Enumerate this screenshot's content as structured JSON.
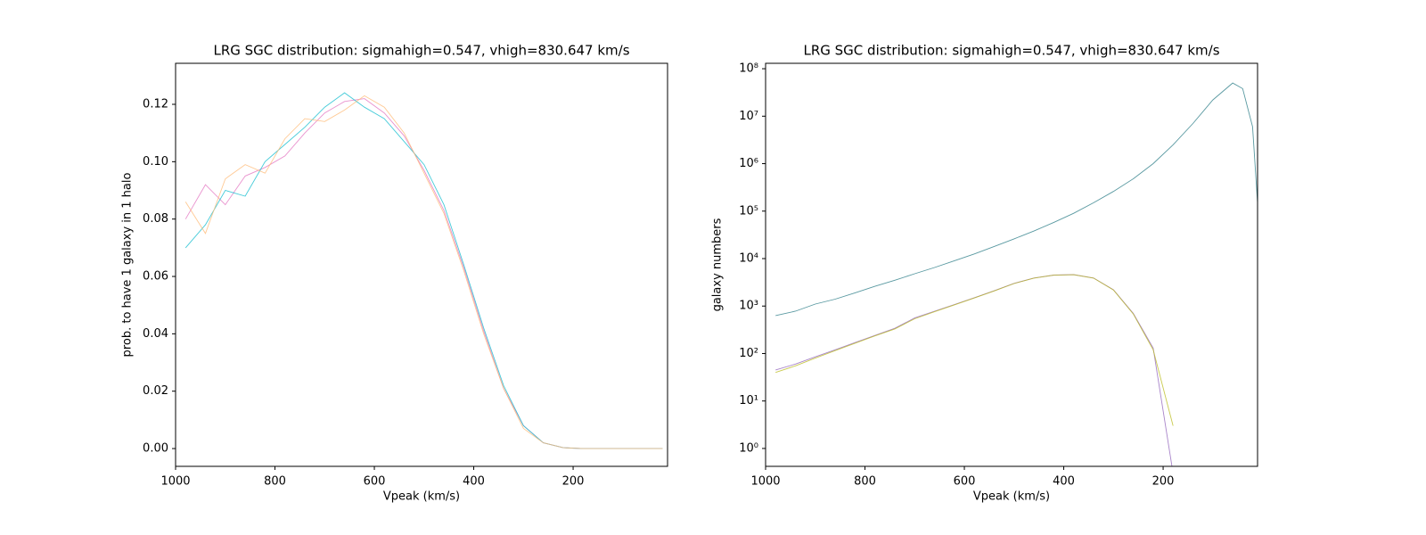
{
  "chart_data": [
    {
      "type": "line",
      "title": "LRG SGC distribution: sigmahigh=0.547, vhigh=830.647 km/s",
      "xlabel": "Vpeak (km/s)",
      "ylabel": "prob. to have 1 galaxy in 1 halo",
      "x": [
        980,
        940,
        900,
        860,
        820,
        780,
        740,
        700,
        660,
        620,
        580,
        540,
        500,
        460,
        420,
        380,
        340,
        300,
        260,
        220,
        180,
        140,
        100,
        60,
        20
      ],
      "series": [
        {
          "color": "#e377c2",
          "values": [
            0.08,
            0.092,
            0.085,
            0.095,
            0.098,
            0.102,
            0.11,
            0.117,
            0.121,
            0.122,
            0.117,
            0.109,
            0.097,
            0.083,
            0.063,
            0.041,
            0.021,
            0.008,
            0.002,
            0.0003,
            0,
            0,
            0,
            0,
            0
          ]
        },
        {
          "color": "#17becf",
          "values": [
            0.07,
            0.078,
            0.09,
            0.088,
            0.1,
            0.106,
            0.112,
            0.119,
            0.124,
            0.119,
            0.115,
            0.107,
            0.099,
            0.085,
            0.064,
            0.042,
            0.022,
            0.008,
            0.002,
            0.0003,
            0,
            0,
            0,
            0,
            0
          ]
        },
        {
          "color": "#ffbb78",
          "values": [
            0.086,
            0.075,
            0.094,
            0.099,
            0.096,
            0.108,
            0.115,
            0.114,
            0.118,
            0.123,
            0.119,
            0.11,
            0.096,
            0.082,
            0.062,
            0.04,
            0.021,
            0.007,
            0.002,
            0.0003,
            0,
            0,
            0,
            0,
            0
          ]
        }
      ],
      "xlim": [
        1000,
        10
      ],
      "xticks": [
        1000,
        800,
        600,
        400,
        200
      ],
      "ylim": [
        -0.0062,
        0.1343
      ],
      "yticks": [
        {
          "value": 0,
          "label": "0.00"
        },
        0.02,
        0.04,
        0.06,
        0.08,
        {
          "value": 0.1,
          "label": "0.10"
        },
        0.12
      ]
    },
    {
      "type": "line",
      "title": "LRG SGC distribution: sigmahigh=0.547, vhigh=830.647 km/s",
      "xlabel": "Vpeak (km/s)",
      "ylabel": "galaxy numbers",
      "log_y": true,
      "x": [
        980,
        940,
        900,
        860,
        820,
        780,
        740,
        700,
        660,
        620,
        580,
        540,
        500,
        460,
        420,
        380,
        340,
        300,
        260,
        220,
        180,
        140,
        100,
        60,
        40,
        20,
        10
      ],
      "series": [
        {
          "color": "#2f7f8a",
          "values": [
            630,
            780,
            1100,
            1400,
            1900,
            2600,
            3500,
            4800,
            6500,
            9000,
            12500,
            18000,
            26000,
            38000,
            58000,
            90000,
            150000,
            260000,
            480000,
            1000000,
            2500000,
            7000000,
            22000000,
            50000000,
            38000000,
            6000000,
            150000
          ]
        },
        {
          "color": "#9467bd",
          "values": [
            45,
            60,
            85,
            120,
            170,
            240,
            340,
            560,
            780,
            1080,
            1500,
            2100,
            3000,
            3900,
            4500,
            4600,
            3900,
            2200,
            700,
            130,
            0.3,
            null,
            null,
            null,
            null,
            null,
            null
          ]
        },
        {
          "color": "#bcbd22",
          "values": [
            40,
            55,
            80,
            115,
            165,
            235,
            330,
            540,
            760,
            1060,
            1480,
            2080,
            2980,
            3880,
            4480,
            4580,
            3880,
            2180,
            680,
            120,
            3,
            null,
            null,
            null,
            null,
            null,
            null
          ]
        }
      ],
      "xlim": [
        1000,
        10
      ],
      "xticks": [
        1000,
        800,
        600,
        400,
        200
      ],
      "ylim": [
        0.42,
        130000000
      ],
      "yticks": [
        {
          "value": 1,
          "label": "10⁰"
        },
        {
          "value": 10,
          "label": "10¹"
        },
        {
          "value": 100,
          "label": "10²"
        },
        {
          "value": 1000,
          "label": "10³"
        },
        {
          "value": 10000,
          "label": "10⁴"
        },
        {
          "value": 100000,
          "label": "10⁵"
        },
        {
          "value": 1000000,
          "label": "10⁶"
        },
        {
          "value": 10000000,
          "label": "10⁷"
        },
        {
          "value": 100000000,
          "label": "10⁸"
        }
      ]
    }
  ]
}
